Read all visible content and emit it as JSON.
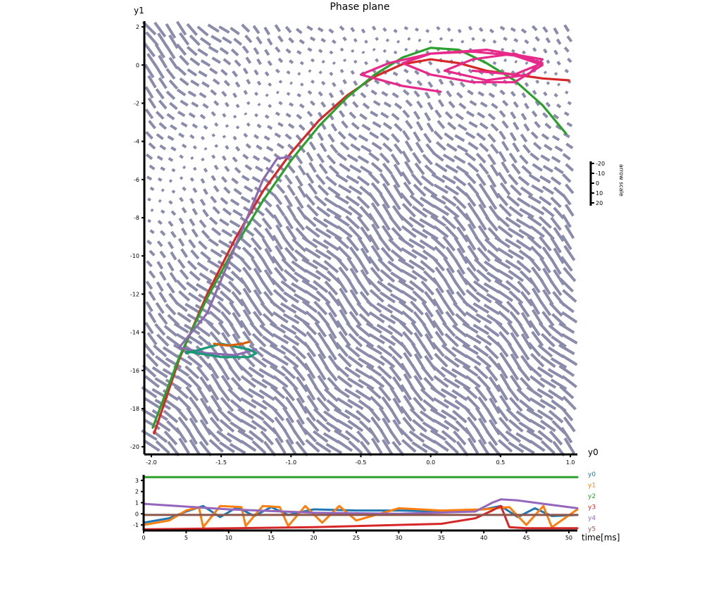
{
  "chart_data": [
    {
      "type": "line",
      "subtype": "phase-plane with direction field",
      "title": "Phase plane",
      "xlabel": "y0",
      "ylabel": "y1",
      "xlim": [
        -2.05,
        1.05
      ],
      "ylim": [
        -20.4,
        2.3
      ],
      "xticks": [
        "-2.0",
        "-1.5",
        "-1.0",
        "-0.5",
        "0.0",
        "0.5",
        "1.0"
      ],
      "yticks": [
        "2",
        "0",
        "-2",
        "-4",
        "-6",
        "-8",
        "-10",
        "-12",
        "-14",
        "-16",
        "-18",
        "-20"
      ],
      "grid": false,
      "field_color": "#8b8bab",
      "colorbar": {
        "label": "arrow scale",
        "ticks": [
          "-20",
          "-10",
          "0",
          "10",
          "20"
        ]
      },
      "series": [
        {
          "color": "#d62728",
          "x": [
            -1.98,
            -1.8,
            -1.6,
            -1.4,
            -1.2,
            -1.0,
            -0.8,
            -0.6,
            -0.4,
            -0.2,
            0.0,
            0.2,
            0.4,
            0.6,
            0.8,
            0.99
          ],
          "y": [
            -19.3,
            -15.4,
            -12.0,
            -9.1,
            -6.6,
            -4.6,
            -2.9,
            -1.6,
            -0.6,
            0.05,
            0.3,
            0.1,
            -0.3,
            -0.5,
            -0.7,
            -0.8
          ]
        },
        {
          "color": "#2ca02c",
          "x": [
            -1.99,
            -1.8,
            -1.6,
            -1.4,
            -1.2,
            -1.0,
            -0.8,
            -0.6,
            -0.4,
            -0.2,
            0.0,
            0.2,
            0.4,
            0.6,
            0.8,
            0.97
          ],
          "y": [
            -19.0,
            -15.3,
            -12.2,
            -9.5,
            -7.1,
            -5.0,
            -3.2,
            -1.7,
            -0.5,
            0.4,
            0.9,
            0.8,
            0.1,
            -0.8,
            -2.1,
            -3.6
          ]
        },
        {
          "color": "#e7298a",
          "x": [
            0.07,
            -0.2,
            -0.5,
            -0.3,
            0.0,
            0.3,
            0.6,
            0.8,
            0.6,
            0.3,
            0.0,
            -0.2,
            0.0,
            0.4,
            0.8,
            0.7,
            0.4,
            0.1,
            0.3,
            0.6,
            0.8,
            0.6,
            0.3
          ],
          "y": [
            -1.4,
            -1.1,
            -0.5,
            0.1,
            0.6,
            0.7,
            0.5,
            0.0,
            -0.9,
            -0.9,
            -0.5,
            0.1,
            0.6,
            0.8,
            0.3,
            -0.5,
            -0.8,
            -0.3,
            0.3,
            0.6,
            0.1,
            -0.5,
            -0.3
          ]
        },
        {
          "color": "#8c6bb1",
          "x": [
            -1.0,
            -1.1,
            -1.2,
            -1.4,
            -1.6,
            -1.8,
            -1.6,
            -1.4,
            -1.25
          ],
          "y": [
            -4.8,
            -4.9,
            -6.0,
            -9.5,
            -13.0,
            -14.8,
            -15.1,
            -15.2,
            -14.9
          ]
        },
        {
          "color": "#1a9977",
          "x": [
            -1.75,
            -1.5,
            -1.3,
            -1.25,
            -1.3,
            -1.5,
            -1.75
          ],
          "y": [
            -15.0,
            -15.3,
            -15.3,
            -15.1,
            -14.9,
            -14.6,
            -15.1
          ]
        },
        {
          "color": "#d95f02",
          "x": [
            -1.55,
            -1.45,
            -1.35,
            -1.3
          ],
          "y": [
            -14.6,
            -14.7,
            -14.6,
            -14.5
          ]
        }
      ]
    },
    {
      "type": "line",
      "xlabel": "time[ms]",
      "xlim": [
        0,
        51
      ],
      "ylim": [
        -1.5,
        3.5
      ],
      "xticks": [
        "0",
        "5",
        "10",
        "15",
        "20",
        "25",
        "30",
        "35",
        "40",
        "45",
        "50"
      ],
      "yticks": [
        "3",
        "2",
        "1",
        "0",
        "-1"
      ],
      "legend_position": "right",
      "series": [
        {
          "name": "y0",
          "color": "#1f77b4",
          "x": [
            0,
            3,
            5,
            7,
            9,
            11,
            13,
            15,
            17,
            20,
            25,
            30,
            35,
            40,
            42,
            44,
            46,
            48,
            51
          ],
          "y": [
            -0.8,
            -0.4,
            0.2,
            0.7,
            -0.3,
            0.6,
            -0.2,
            0.6,
            -0.1,
            0.4,
            0.3,
            0.3,
            0.2,
            0.4,
            0.7,
            -0.3,
            0.5,
            -0.2,
            -0.1
          ]
        },
        {
          "name": "y1",
          "color": "#ff7f0e",
          "x": [
            0,
            3,
            5,
            6.5,
            7,
            9,
            11.5,
            12,
            14,
            16,
            17,
            19,
            21,
            23,
            25,
            30,
            35,
            40,
            43,
            45,
            47,
            48,
            51
          ],
          "y": [
            -1.0,
            -0.6,
            0.3,
            0.6,
            -1.2,
            0.7,
            0.6,
            -1.1,
            0.7,
            0.6,
            -1.1,
            0.7,
            -0.8,
            0.7,
            -0.6,
            0.5,
            0.3,
            0.4,
            0.6,
            -1.0,
            0.7,
            -1.2,
            0.4
          ]
        },
        {
          "name": "y2",
          "color": "#2ca02c",
          "x": [
            0,
            51
          ],
          "y": [
            3.3,
            3.3
          ]
        },
        {
          "name": "y3",
          "color": "#d62728",
          "x": [
            0,
            20,
            35,
            39,
            41,
            42,
            43,
            45,
            51
          ],
          "y": [
            -1.4,
            -1.2,
            -0.9,
            -0.4,
            0.3,
            0.7,
            -1.2,
            -1.3,
            -1.3
          ]
        },
        {
          "name": "y4",
          "color": "#9467bd",
          "x": [
            0,
            10,
            20,
            30,
            39,
            41,
            42,
            44,
            47,
            51
          ],
          "y": [
            0.9,
            0.4,
            0.1,
            0.0,
            0.2,
            1.0,
            1.3,
            1.2,
            0.9,
            0.5
          ]
        },
        {
          "name": "y5",
          "color": "#8c564b",
          "x": [
            0,
            51
          ],
          "y": [
            -0.1,
            -0.1
          ]
        }
      ]
    }
  ]
}
